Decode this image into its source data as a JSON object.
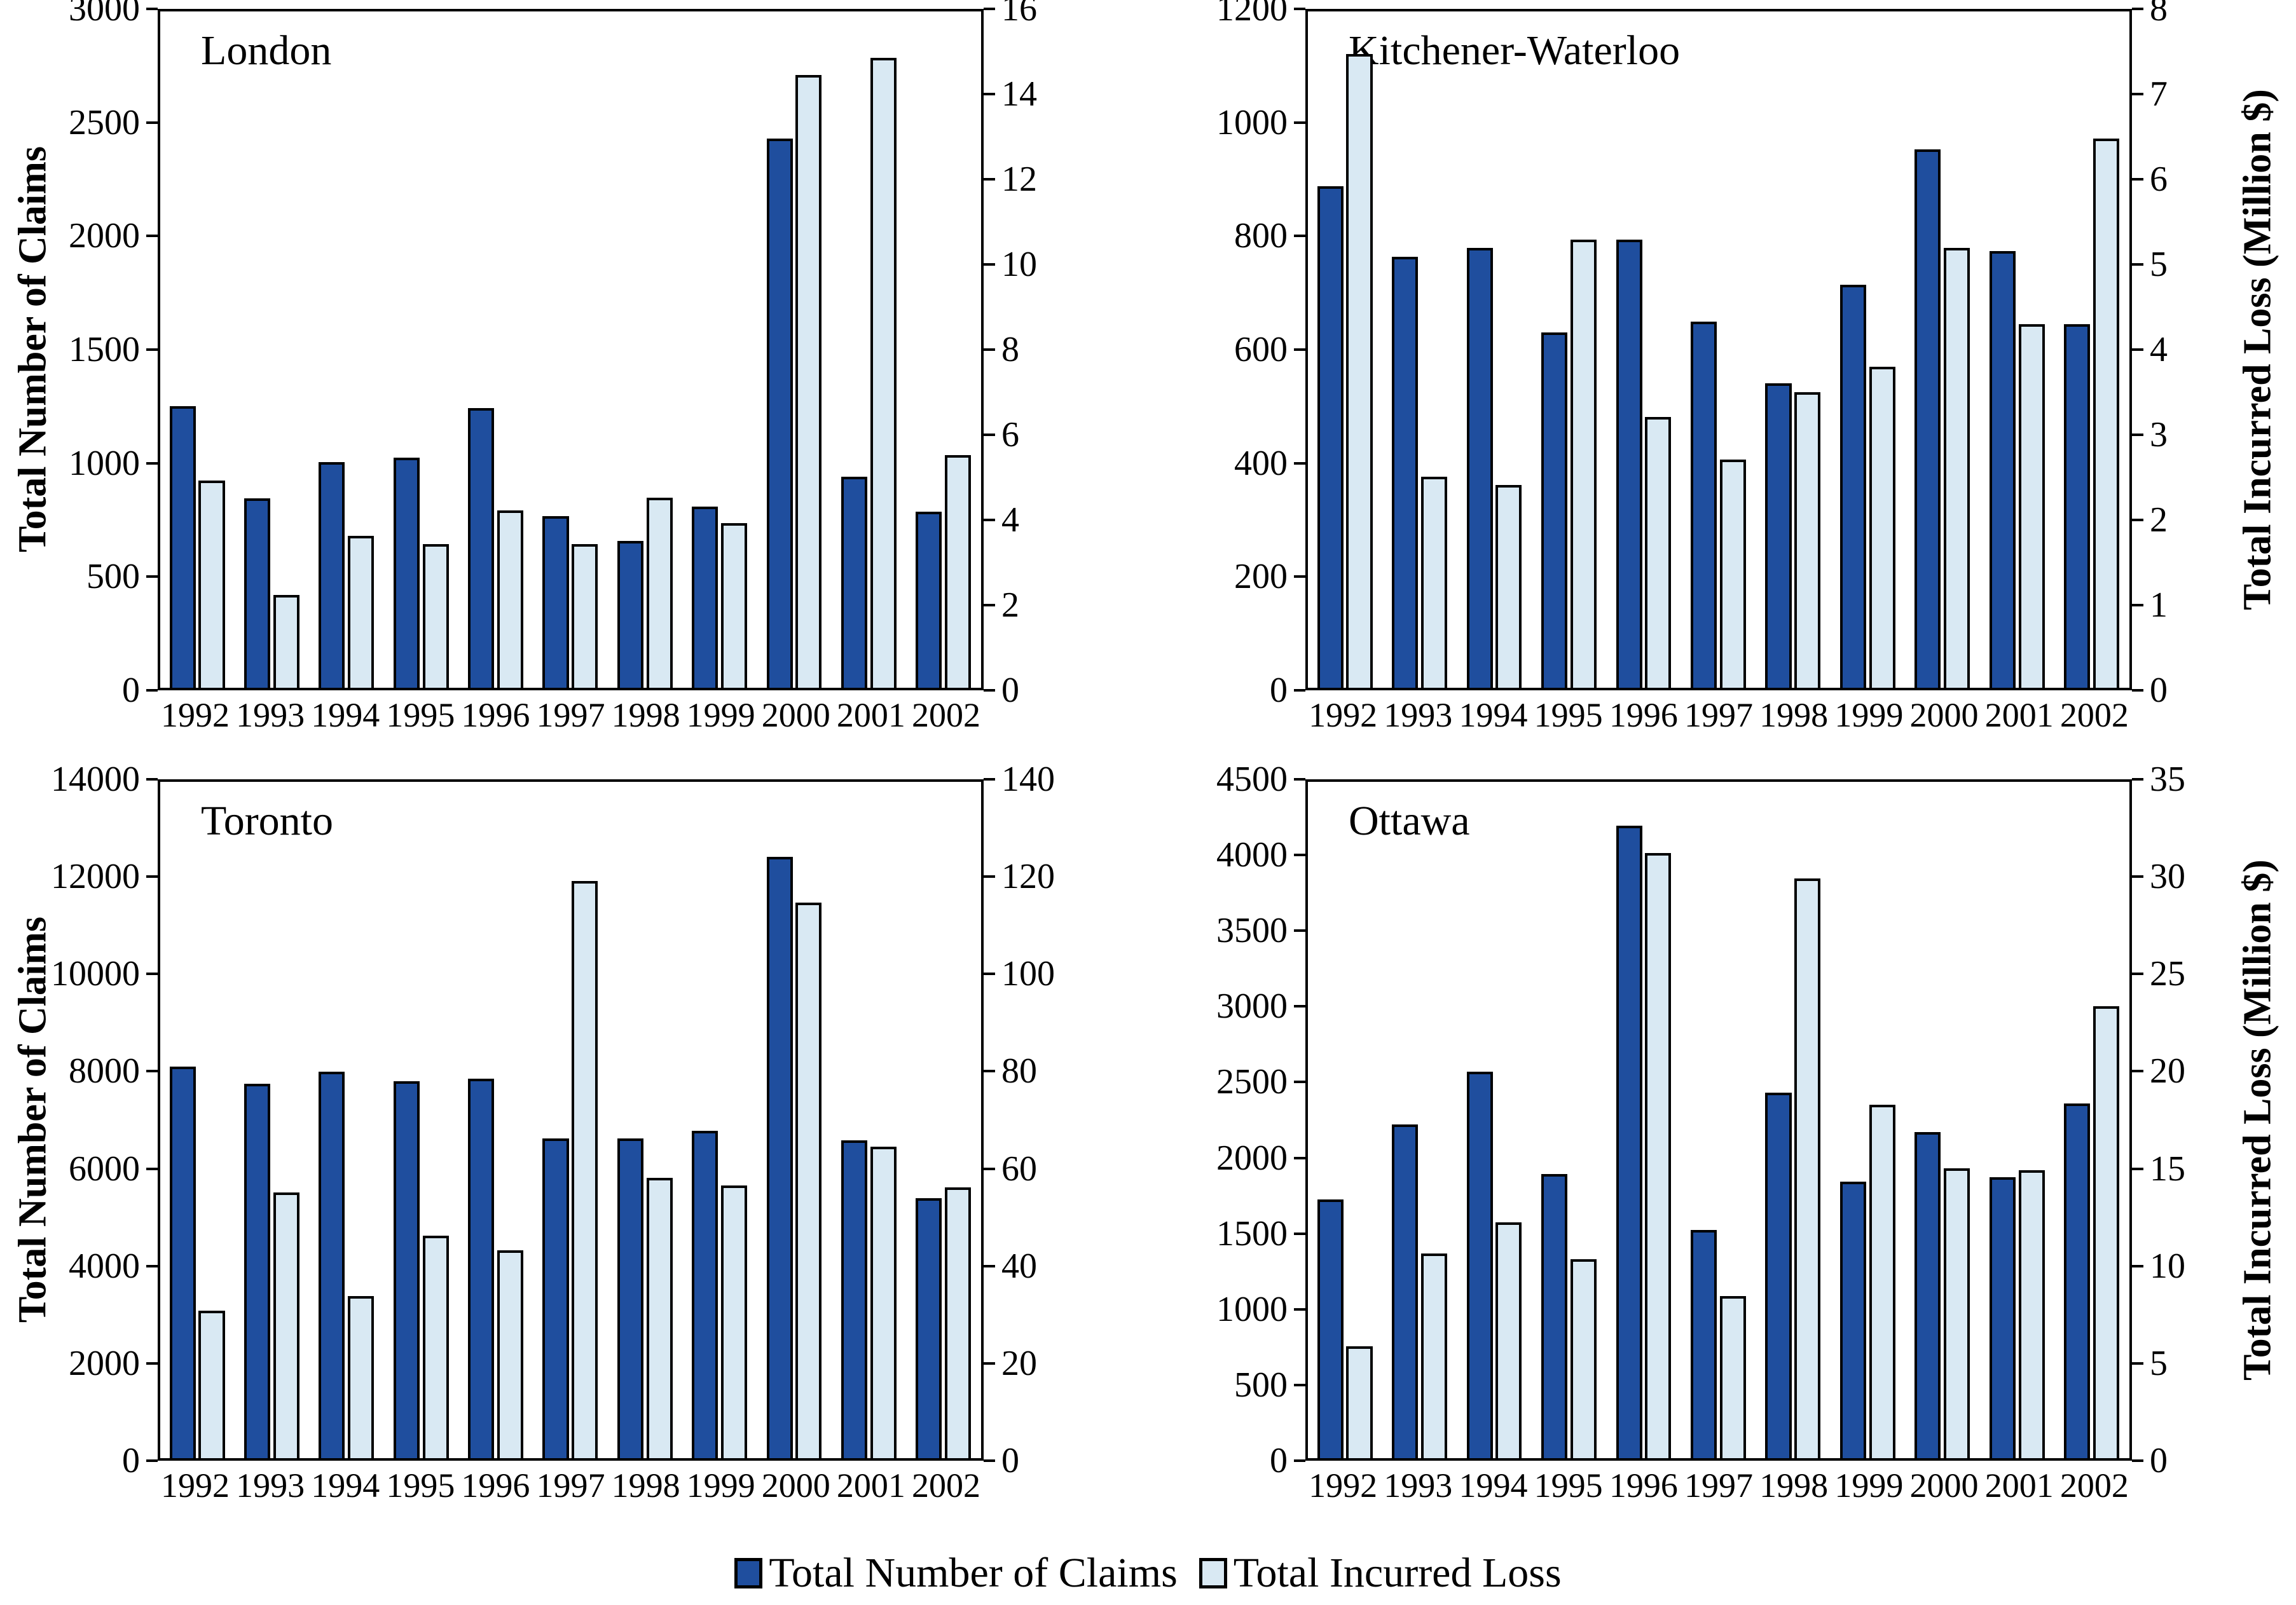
{
  "colors": {
    "claims_bar": "#1F4E9E",
    "loss_bar": "#D9E9F3",
    "bar_border": "#000000",
    "frame": "#000000"
  },
  "legend": {
    "claims_label": "Total Number of Claims",
    "loss_label": "Total Incurred Loss"
  },
  "chart_data": [
    {
      "type": "bar",
      "title": "London",
      "categories": [
        "1992",
        "1993",
        "1994",
        "1995",
        "1996",
        "1997",
        "1998",
        "1999",
        "2000",
        "2001",
        "2002"
      ],
      "left_axis": {
        "label": "Total Number of Claims",
        "min": 0,
        "max": 3000,
        "step": 500
      },
      "right_axis": {
        "label": "",
        "min": 0,
        "max": 16,
        "step": 2
      },
      "grid": false,
      "series": [
        {
          "name": "Total Number of Claims",
          "axis": "left",
          "values": [
            1250,
            840,
            1000,
            1020,
            1240,
            760,
            650,
            805,
            2435,
            935,
            780
          ]
        },
        {
          "name": "Total Incurred Loss",
          "axis": "right",
          "values": [
            4.9,
            2.2,
            3.6,
            3.4,
            4.2,
            3.4,
            4.5,
            3.9,
            14.5,
            14.9,
            5.5
          ]
        }
      ]
    },
    {
      "type": "bar",
      "title": "Kitchener-Waterloo",
      "categories": [
        "1992",
        "1993",
        "1994",
        "1995",
        "1996",
        "1997",
        "1998",
        "1999",
        "2000",
        "2001",
        "2002"
      ],
      "left_axis": {
        "label": "",
        "min": 0,
        "max": 1200,
        "step": 200
      },
      "right_axis": {
        "label": "Total Incurred Loss (Million $)",
        "min": 0,
        "max": 8,
        "step": 1
      },
      "grid": false,
      "series": [
        {
          "name": "Total Number of Claims",
          "axis": "left",
          "values": [
            890,
            765,
            780,
            630,
            795,
            650,
            540,
            715,
            955,
            775,
            645
          ]
        },
        {
          "name": "Total Incurred Loss",
          "axis": "right",
          "values": [
            7.5,
            2.5,
            2.4,
            5.3,
            3.2,
            2.7,
            3.5,
            3.8,
            5.2,
            4.3,
            6.5
          ]
        }
      ]
    },
    {
      "type": "bar",
      "title": "Toronto",
      "categories": [
        "1992",
        "1993",
        "1994",
        "1995",
        "1996",
        "1997",
        "1998",
        "1999",
        "2000",
        "2001",
        "2002"
      ],
      "left_axis": {
        "label": "Total Number of Claims",
        "min": 0,
        "max": 14000,
        "step": 2000
      },
      "right_axis": {
        "label": "",
        "min": 0,
        "max": 140,
        "step": 20
      },
      "grid": false,
      "series": [
        {
          "name": "Total Number of Claims",
          "axis": "left",
          "values": [
            8100,
            7750,
            8000,
            7800,
            7850,
            6620,
            6620,
            6780,
            12450,
            6580,
            5380
          ]
        },
        {
          "name": "Total Incurred Loss",
          "axis": "right",
          "values": [
            30.5,
            55,
            33.5,
            46,
            43,
            119.5,
            58,
            56.5,
            115,
            64.5,
            56
          ]
        }
      ]
    },
    {
      "type": "bar",
      "title": "Ottawa",
      "categories": [
        "1992",
        "1993",
        "1994",
        "1995",
        "1996",
        "1997",
        "1998",
        "1999",
        "2000",
        "2001",
        "2002"
      ],
      "left_axis": {
        "label": "",
        "min": 0,
        "max": 4500,
        "step": 500
      },
      "right_axis": {
        "label": "Total Incurred Loss (Million $)",
        "min": 0,
        "max": 35,
        "step": 5
      },
      "grid": false,
      "series": [
        {
          "name": "Total Number of Claims",
          "axis": "left",
          "values": [
            1720,
            2220,
            2570,
            1890,
            4210,
            1520,
            2430,
            1840,
            2170,
            1870,
            2360
          ]
        },
        {
          "name": "Total Incurred Loss",
          "axis": "right",
          "values": [
            5.8,
            10.6,
            12.2,
            10.3,
            31.3,
            8.4,
            30,
            18.3,
            15,
            14.9,
            23.4
          ]
        }
      ]
    }
  ]
}
